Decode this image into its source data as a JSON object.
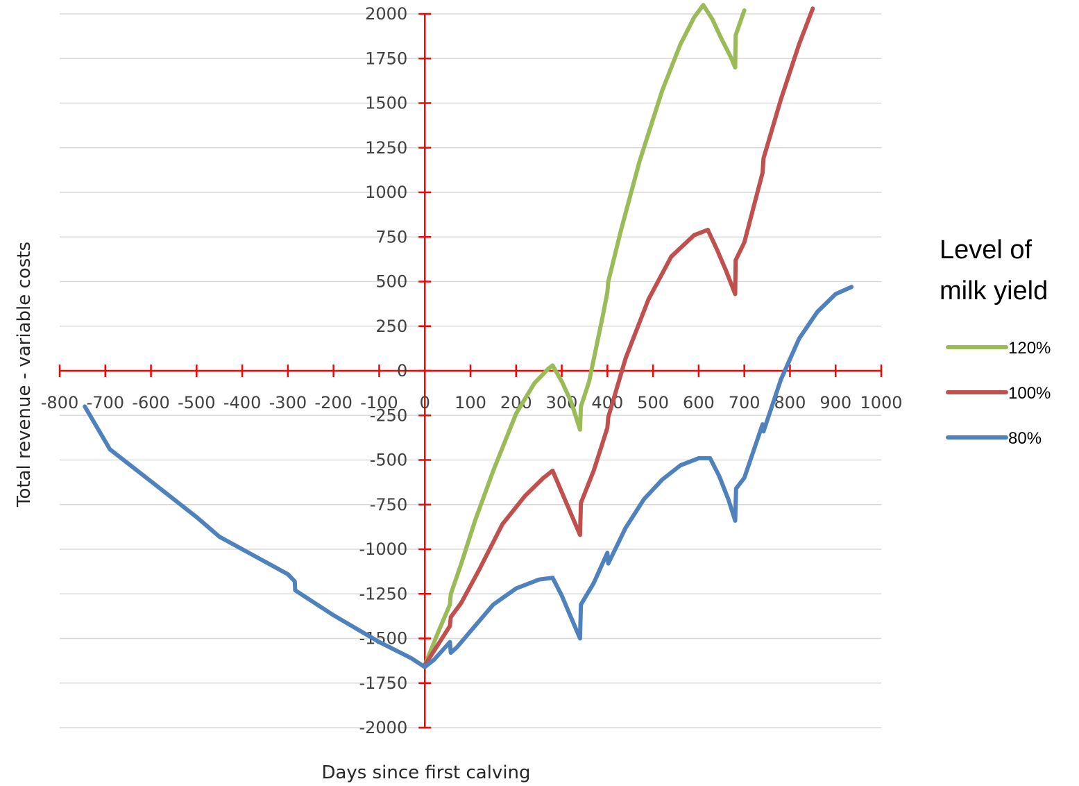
{
  "chart_data": {
    "type": "line",
    "xlabel": "Days since first calving",
    "ylabel": "Total revenue - variable costs",
    "xlim": [
      -800,
      1000
    ],
    "ylim": [
      -2000,
      2000
    ],
    "x_ticks": [
      -800,
      -700,
      -600,
      -500,
      -400,
      -300,
      -200,
      -100,
      0,
      100,
      200,
      300,
      400,
      500,
      600,
      700,
      800,
      900,
      1000
    ],
    "y_ticks": [
      2000,
      1750,
      1500,
      1250,
      1000,
      750,
      500,
      250,
      0,
      -250,
      -500,
      -750,
      -1000,
      -1250,
      -1500,
      -1750,
      -2000
    ],
    "grid": "horizontal",
    "legend": {
      "title_lines": [
        "Level of",
        "milk yield"
      ],
      "position": "right"
    },
    "axis_color": "#ff0000",
    "series": [
      {
        "name": "120%",
        "color": "#9bbb59",
        "x": [
          0,
          30,
          55,
          57,
          80,
          110,
          150,
          200,
          240,
          270,
          280,
          300,
          320,
          340,
          342,
          360,
          390,
          400,
          402,
          430,
          470,
          520,
          560,
          590,
          610,
          630,
          650,
          670,
          680,
          681,
          700
        ],
        "y": [
          -1650,
          -1460,
          -1310,
          -1250,
          -1080,
          -840,
          -560,
          -240,
          -70,
          10,
          30,
          -60,
          -170,
          -330,
          -200,
          -60,
          310,
          440,
          500,
          790,
          1170,
          1570,
          1830,
          1980,
          2050,
          1970,
          1860,
          1760,
          1700,
          1880,
          2020
        ]
      },
      {
        "name": "100%",
        "color": "#c0504d",
        "x": [
          0,
          30,
          55,
          57,
          80,
          120,
          170,
          220,
          260,
          280,
          300,
          320,
          340,
          342,
          370,
          400,
          402,
          440,
          490,
          540,
          590,
          620,
          640,
          660,
          680,
          681,
          700,
          740,
          742,
          780,
          820,
          850
        ],
        "y": [
          -1650,
          -1530,
          -1430,
          -1380,
          -1300,
          -1110,
          -860,
          -700,
          -600,
          -560,
          -680,
          -800,
          -920,
          -740,
          -560,
          -320,
          -260,
          70,
          400,
          640,
          760,
          790,
          680,
          560,
          430,
          620,
          720,
          1110,
          1190,
          1520,
          1830,
          2030
        ]
      },
      {
        "name": "80%",
        "color": "#4f81bd",
        "x": [
          -745,
          -690,
          -600,
          -500,
          -450,
          -400,
          -300,
          -285,
          -284,
          -200,
          -100,
          -30,
          0,
          20,
          55,
          57,
          70,
          100,
          150,
          200,
          250,
          280,
          300,
          320,
          340,
          342,
          370,
          400,
          402,
          440,
          480,
          520,
          560,
          600,
          625,
          645,
          665,
          680,
          682,
          700,
          740,
          742,
          780,
          820,
          860,
          900,
          935
        ],
        "y": [
          -200,
          -440,
          -620,
          -820,
          -930,
          -1000,
          -1140,
          -1180,
          -1230,
          -1370,
          -1520,
          -1610,
          -1660,
          -1620,
          -1520,
          -1580,
          -1550,
          -1460,
          -1310,
          -1220,
          -1170,
          -1160,
          -1260,
          -1380,
          -1500,
          -1310,
          -1190,
          -1020,
          -1080,
          -880,
          -720,
          -610,
          -530,
          -490,
          -490,
          -590,
          -720,
          -840,
          -660,
          -600,
          -300,
          -340,
          -50,
          180,
          330,
          430,
          470
        ]
      }
    ]
  }
}
